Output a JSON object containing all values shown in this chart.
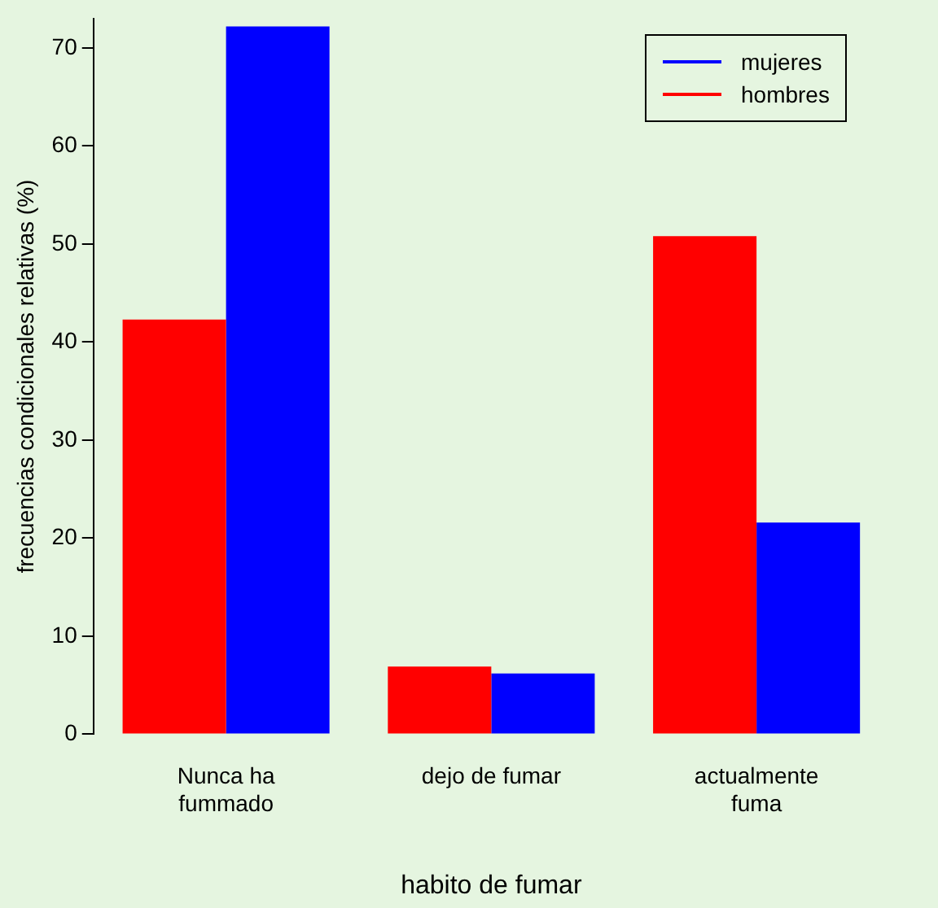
{
  "chart_data": {
    "type": "bar",
    "xlabel": "habito de fumar",
    "ylabel": "frecuencias condicionales relativas (%)",
    "categories": [
      "Nunca ha fummado",
      "dejo de fumar",
      "actualmente fuma"
    ],
    "series": [
      {
        "name": "hombres",
        "color": "#ff0000",
        "values": [
          42.3,
          6.9,
          50.8
        ]
      },
      {
        "name": "mujeres",
        "color": "#0000ff",
        "values": [
          72.2,
          6.2,
          21.6
        ]
      }
    ],
    "ylim": [
      0,
      73
    ],
    "yticks": [
      0,
      10,
      20,
      30,
      40,
      50,
      60,
      70
    ],
    "grid": false,
    "legend": "top right"
  }
}
